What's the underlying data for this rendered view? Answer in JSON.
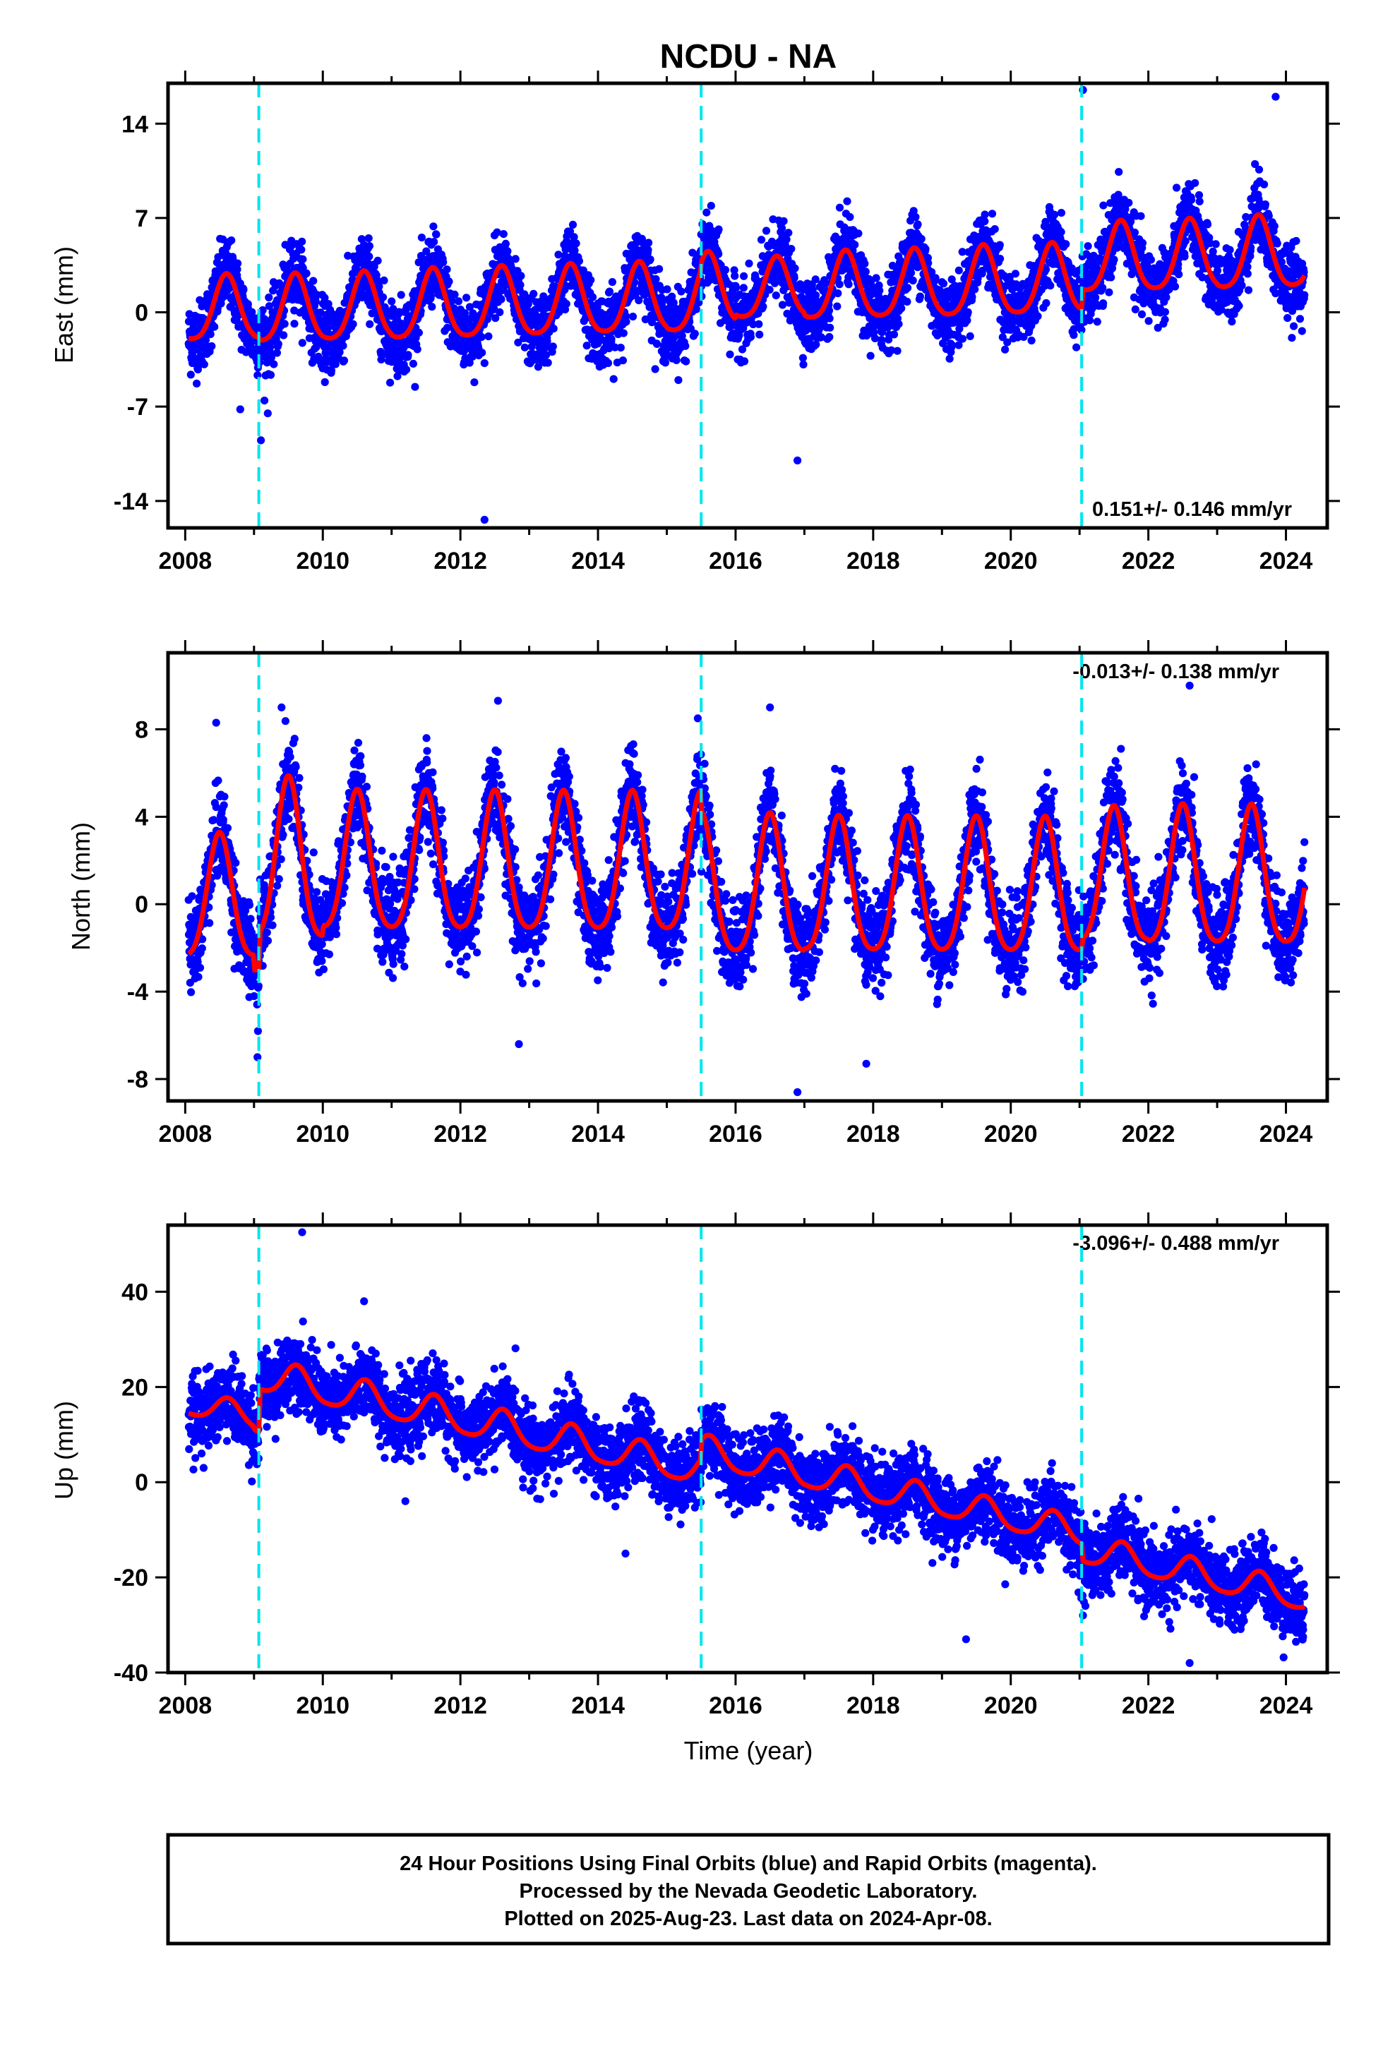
{
  "figure": {
    "title": "NCDU - NA",
    "x_axis_label": "Time (year)",
    "footer": {
      "line1": "24 Hour Positions Using Final Orbits (blue) and Rapid Orbits (magenta).",
      "line2": "Processed by the Nevada Geodetic Laboratory.",
      "line3": "Plotted on 2025-Aug-23. Last data on 2024-Apr-08."
    },
    "colors": {
      "points": "#0000ff",
      "fit": "#ff0000",
      "events": "#00e5ee",
      "frame": "#000000"
    }
  },
  "chart_data": [
    {
      "type": "scatter",
      "title": "NCDU - NA",
      "component": "east",
      "ylabel": "East (mm)",
      "xlabel": "",
      "rate_text": "0.151+/- 0.146 mm/yr",
      "rate_position": "bottom-right",
      "xlim": [
        2007.75,
        2024.6
      ],
      "ylim": [
        -16.0,
        17.0
      ],
      "xticks": [
        2008,
        2010,
        2012,
        2014,
        2016,
        2018,
        2020,
        2022,
        2024
      ],
      "yticks": [
        -14,
        -7,
        0,
        7,
        14
      ],
      "event_lines": [
        2009.07,
        2015.5,
        2021.03
      ],
      "data_start": 2008.05,
      "data_end": 2024.27,
      "fit": {
        "trend_mm_per_yr": 0.151,
        "annual_amplitude_mm": [
          2.8,
          2.9,
          2.9,
          3.0,
          3.0,
          3.0,
          3.0,
          3.1,
          2.6,
          2.9,
          2.9,
          3.0,
          3.0,
          3.0,
          3.0,
          3.1,
          3.1
        ],
        "annual_peak_phase_yr": 0.6,
        "offsets": [
          {
            "year": 2009.07,
            "mm": -0.2
          },
          {
            "year": 2015.5,
            "mm": 0.5
          },
          {
            "year": 2021.03,
            "mm": 1.5
          }
        ]
      },
      "scatter_sigma_mm": 1.3,
      "outliers": [
        [
          2012.35,
          -15.4
        ],
        [
          2016.9,
          -11.0
        ],
        [
          2021.05,
          16.5
        ],
        [
          2023.85,
          16.0
        ],
        [
          2023.55,
          11.0
        ],
        [
          2009.1,
          -9.5
        ],
        [
          2008.8,
          -7.2
        ],
        [
          2009.2,
          -7.5
        ]
      ]
    },
    {
      "type": "scatter",
      "component": "north",
      "ylabel": "North (mm)",
      "xlabel": "",
      "rate_text": "-0.013+/- 0.138 mm/yr",
      "rate_position": "top-right",
      "xlim": [
        2007.75,
        2024.6
      ],
      "ylim": [
        -9.0,
        11.5
      ],
      "xticks": [
        2008,
        2010,
        2012,
        2014,
        2016,
        2018,
        2020,
        2022,
        2024
      ],
      "yticks": [
        -8,
        -4,
        0,
        4,
        8
      ],
      "event_lines": [
        2009.07,
        2015.5,
        2021.03
      ],
      "data_start": 2008.05,
      "data_end": 2024.27,
      "fit": {
        "trend_mm_per_yr": -0.013,
        "annual_amplitude_mm": [
          3.3,
          4.3,
          3.7,
          3.7,
          3.7,
          3.7,
          3.7,
          3.7,
          3.7,
          3.6,
          3.6,
          3.6,
          3.6,
          3.6,
          3.7,
          3.7,
          3.7
        ],
        "annual_peak_phase_yr": 0.5,
        "offsets": [
          {
            "year": 2009.07,
            "mm": 1.6
          },
          {
            "year": 2015.5,
            "mm": -1.0
          },
          {
            "year": 2021.03,
            "mm": 0.5
          }
        ]
      },
      "scatter_sigma_mm": 1.0,
      "outliers": [
        [
          2016.9,
          -8.6
        ],
        [
          2017.9,
          -7.3
        ],
        [
          2022.6,
          10.0
        ],
        [
          2016.5,
          9.0
        ],
        [
          2009.4,
          9.0
        ],
        [
          2015.45,
          8.5
        ],
        [
          2008.45,
          8.3
        ],
        [
          2012.85,
          -6.4
        ],
        [
          2009.05,
          -7.0
        ]
      ]
    },
    {
      "type": "scatter",
      "component": "up",
      "ylabel": "Up (mm)",
      "xlabel": "Time (year)",
      "rate_text": "-3.096+/- 0.488 mm/yr",
      "rate_position": "top-right",
      "xlim": [
        2007.75,
        2024.6
      ],
      "ylim": [
        -40.0,
        54.0
      ],
      "xticks": [
        2008,
        2010,
        2012,
        2014,
        2016,
        2018,
        2020,
        2022,
        2024
      ],
      "yticks": [
        -40,
        -20,
        0,
        20,
        40
      ],
      "event_lines": [
        2009.07,
        2015.5,
        2021.03
      ],
      "data_start": 2008.05,
      "data_end": 2024.27,
      "fit": {
        "start_mm": 16.5,
        "trend_mm_per_yr": -3.096,
        "annual_amplitude_mm": [
          3.0,
          4.0,
          4.0,
          4.0,
          4.0,
          4.0,
          3.8,
          3.8,
          3.8,
          3.6,
          3.6,
          3.5,
          3.5,
          3.5,
          3.5,
          3.5,
          3.5
        ],
        "annual_peak_phase_yr": 0.62,
        "offsets": [
          {
            "year": 2009.07,
            "mm": 9.0
          },
          {
            "year": 2015.5,
            "mm": 4.0
          },
          {
            "year": 2021.03,
            "mm": -3.5
          }
        ]
      },
      "scatter_sigma_mm": 3.8,
      "outliers": [
        [
          2009.7,
          52.5
        ],
        [
          2010.6,
          38.0
        ],
        [
          2021.05,
          -28.0
        ],
        [
          2022.6,
          -38.0
        ],
        [
          2019.35,
          -33.0
        ],
        [
          2024.25,
          -31.0
        ],
        [
          2011.2,
          -4.0
        ],
        [
          2014.4,
          -15.0
        ],
        [
          2020.6,
          4.0
        ]
      ]
    }
  ]
}
